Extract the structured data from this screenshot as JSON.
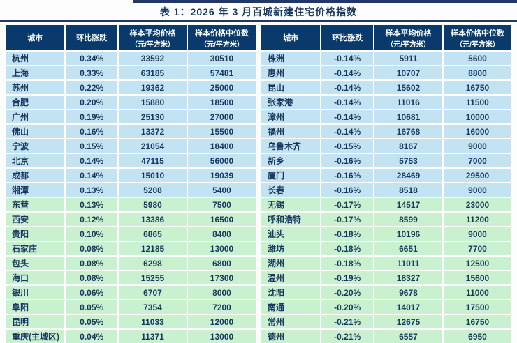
{
  "chart_data": {
    "type": "table",
    "title": "表 1：2026 年 3 月百城新建住宅价格指数",
    "columns": [
      {
        "label": "城市",
        "sub": ""
      },
      {
        "label": "环比涨跌",
        "sub": ""
      },
      {
        "label": "样本平均价格",
        "sub": "（元/平方米）"
      },
      {
        "label": "样本价格中位数",
        "sub": "（元/平方米）"
      }
    ],
    "band_colors": {
      "blue": "#c3e3f3",
      "green": "#c9f0cf"
    },
    "header_color": "#0a3a6b",
    "left_rows": [
      {
        "city": "杭州",
        "change": "0.34%",
        "avg": "33592",
        "median": "30510",
        "band": "blue"
      },
      {
        "city": "上海",
        "change": "0.33%",
        "avg": "63185",
        "median": "57481",
        "band": "blue"
      },
      {
        "city": "苏州",
        "change": "0.22%",
        "avg": "19362",
        "median": "25000",
        "band": "blue"
      },
      {
        "city": "合肥",
        "change": "0.20%",
        "avg": "15880",
        "median": "18500",
        "band": "blue"
      },
      {
        "city": "广州",
        "change": "0.19%",
        "avg": "25130",
        "median": "27000",
        "band": "blue"
      },
      {
        "city": "佛山",
        "change": "0.16%",
        "avg": "13372",
        "median": "15500",
        "band": "blue"
      },
      {
        "city": "宁波",
        "change": "0.15%",
        "avg": "21054",
        "median": "18400",
        "band": "blue"
      },
      {
        "city": "北京",
        "change": "0.14%",
        "avg": "47115",
        "median": "56000",
        "band": "blue"
      },
      {
        "city": "成都",
        "change": "0.14%",
        "avg": "15010",
        "median": "19039",
        "band": "blue"
      },
      {
        "city": "湘潭",
        "change": "0.13%",
        "avg": "5208",
        "median": "5400",
        "band": "blue"
      },
      {
        "city": "东营",
        "change": "0.13%",
        "avg": "5980",
        "median": "7500",
        "band": "green"
      },
      {
        "city": "西安",
        "change": "0.12%",
        "avg": "13386",
        "median": "16500",
        "band": "green"
      },
      {
        "city": "贵阳",
        "change": "0.10%",
        "avg": "6865",
        "median": "8400",
        "band": "green"
      },
      {
        "city": "石家庄",
        "change": "0.08%",
        "avg": "12185",
        "median": "13000",
        "band": "green"
      },
      {
        "city": "包头",
        "change": "0.08%",
        "avg": "6298",
        "median": "6800",
        "band": "green"
      },
      {
        "city": "海口",
        "change": "0.08%",
        "avg": "15255",
        "median": "17300",
        "band": "green"
      },
      {
        "city": "银川",
        "change": "0.06%",
        "avg": "6707",
        "median": "8000",
        "band": "green"
      },
      {
        "city": "阜阳",
        "change": "0.05%",
        "avg": "7354",
        "median": "7200",
        "band": "green"
      },
      {
        "city": "昆明",
        "change": "0.05%",
        "avg": "11033",
        "median": "12000",
        "band": "green"
      },
      {
        "city": "重庆(主城区)",
        "change": "0.04%",
        "avg": "11371",
        "median": "13000",
        "band": "green"
      }
    ],
    "right_rows": [
      {
        "city": "株洲",
        "change": "-0.14%",
        "avg": "5911",
        "median": "5600",
        "band": "blue"
      },
      {
        "city": "惠州",
        "change": "-0.14%",
        "avg": "10707",
        "median": "8800",
        "band": "blue"
      },
      {
        "city": "昆山",
        "change": "-0.14%",
        "avg": "15602",
        "median": "16750",
        "band": "blue"
      },
      {
        "city": "张家港",
        "change": "-0.14%",
        "avg": "11016",
        "median": "11500",
        "band": "blue"
      },
      {
        "city": "漳州",
        "change": "-0.14%",
        "avg": "10681",
        "median": "10000",
        "band": "blue"
      },
      {
        "city": "福州",
        "change": "-0.14%",
        "avg": "16768",
        "median": "16000",
        "band": "blue"
      },
      {
        "city": "乌鲁木齐",
        "change": "-0.15%",
        "avg": "8167",
        "median": "9000",
        "band": "blue"
      },
      {
        "city": "新乡",
        "change": "-0.16%",
        "avg": "5753",
        "median": "7000",
        "band": "blue"
      },
      {
        "city": "厦门",
        "change": "-0.16%",
        "avg": "28469",
        "median": "29500",
        "band": "blue"
      },
      {
        "city": "长春",
        "change": "-0.16%",
        "avg": "8518",
        "median": "9000",
        "band": "blue"
      },
      {
        "city": "无锡",
        "change": "-0.17%",
        "avg": "14517",
        "median": "23000",
        "band": "green"
      },
      {
        "city": "呼和浩特",
        "change": "-0.17%",
        "avg": "8599",
        "median": "11200",
        "band": "green"
      },
      {
        "city": "汕头",
        "change": "-0.18%",
        "avg": "10196",
        "median": "9000",
        "band": "green"
      },
      {
        "city": "潍坊",
        "change": "-0.18%",
        "avg": "6651",
        "median": "7700",
        "band": "green"
      },
      {
        "city": "湖州",
        "change": "-0.18%",
        "avg": "11011",
        "median": "12500",
        "band": "green"
      },
      {
        "city": "温州",
        "change": "-0.19%",
        "avg": "18327",
        "median": "15600",
        "band": "green"
      },
      {
        "city": "沈阳",
        "change": "-0.20%",
        "avg": "9678",
        "median": "11000",
        "band": "green"
      },
      {
        "city": "南通",
        "change": "-0.20%",
        "avg": "14017",
        "median": "17500",
        "band": "green"
      },
      {
        "city": "常州",
        "change": "-0.21%",
        "avg": "12675",
        "median": "16750",
        "band": "green"
      },
      {
        "city": "德州",
        "change": "-0.21%",
        "avg": "6557",
        "median": "6950",
        "band": "green"
      }
    ]
  }
}
